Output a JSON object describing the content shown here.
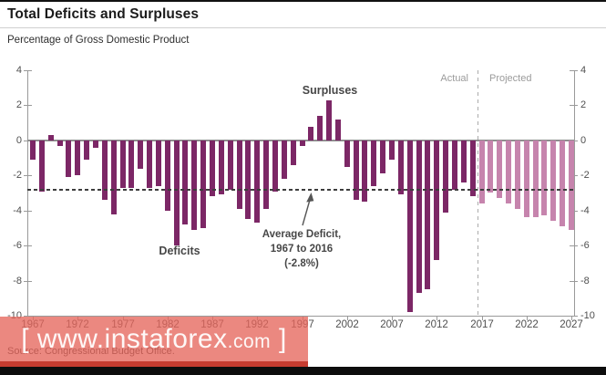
{
  "header": {
    "title": "Total Deficits and Surpluses",
    "subtitle": "Percentage of Gross Domestic Product"
  },
  "chart_data": {
    "type": "bar",
    "title": "Total Deficits and Surpluses",
    "subtitle": "Percentage of Gross Domestic Product",
    "x": [
      1967,
      1968,
      1969,
      1970,
      1971,
      1972,
      1973,
      1974,
      1975,
      1976,
      1977,
      1978,
      1979,
      1980,
      1981,
      1982,
      1983,
      1984,
      1985,
      1986,
      1987,
      1988,
      1989,
      1990,
      1991,
      1992,
      1993,
      1994,
      1995,
      1996,
      1997,
      1998,
      1999,
      2000,
      2001,
      2002,
      2003,
      2004,
      2005,
      2006,
      2007,
      2008,
      2009,
      2010,
      2011,
      2012,
      2013,
      2014,
      2015,
      2016,
      2017,
      2018,
      2019,
      2020,
      2021,
      2022,
      2023,
      2024,
      2025,
      2026,
      2027
    ],
    "values": [
      -1.1,
      -2.9,
      0.3,
      -0.3,
      -2.1,
      -2.0,
      -1.1,
      -0.4,
      -3.4,
      -4.2,
      -2.7,
      -2.7,
      -1.6,
      -2.7,
      -2.6,
      -4.0,
      -6.0,
      -4.8,
      -5.1,
      -5.0,
      -3.2,
      -3.1,
      -2.8,
      -3.9,
      -4.5,
      -4.7,
      -3.9,
      -2.9,
      -2.2,
      -1.4,
      -0.3,
      0.8,
      1.4,
      2.3,
      1.2,
      -1.5,
      -3.4,
      -3.5,
      -2.6,
      -1.9,
      -1.1,
      -3.1,
      -9.8,
      -8.7,
      -8.5,
      -6.8,
      -4.1,
      -2.8,
      -2.4,
      -3.2,
      -3.6,
      -3.0,
      -3.3,
      -3.6,
      -3.9,
      -4.4,
      -4.4,
      -4.3,
      -4.6,
      -4.9,
      -5.1
    ],
    "projected_from": 2017,
    "ylim": [
      -10,
      4
    ],
    "yticks": [
      4,
      2,
      0,
      -2,
      -4,
      -6,
      -8,
      -10
    ],
    "xticks": [
      1967,
      1972,
      1977,
      1982,
      1987,
      1992,
      1997,
      2002,
      2007,
      2012,
      2017,
      2022,
      2027
    ],
    "grid": false,
    "legend_position": "none",
    "avg_line": {
      "value": -2.8,
      "label_lines": [
        "Average Deficit,",
        "1967 to 2016",
        "(-2.8%)"
      ]
    },
    "annotations": {
      "surpluses": "Surpluses",
      "deficits": "Deficits",
      "actual": "Actual",
      "projected": "Projected"
    },
    "colors": {
      "actual_bar": "#7c2766",
      "projected_bar": "#c684ad",
      "zero_line": "#8f8f8f",
      "avg_line": "#3d3d3d",
      "divider_line": "#ababab"
    }
  },
  "footer": {
    "source": "Source: Congressional Budget Office."
  },
  "watermark": {
    "open": "[ ",
    "main": "www.instaforex",
    "suffix": ".com",
    "close": " ]"
  }
}
